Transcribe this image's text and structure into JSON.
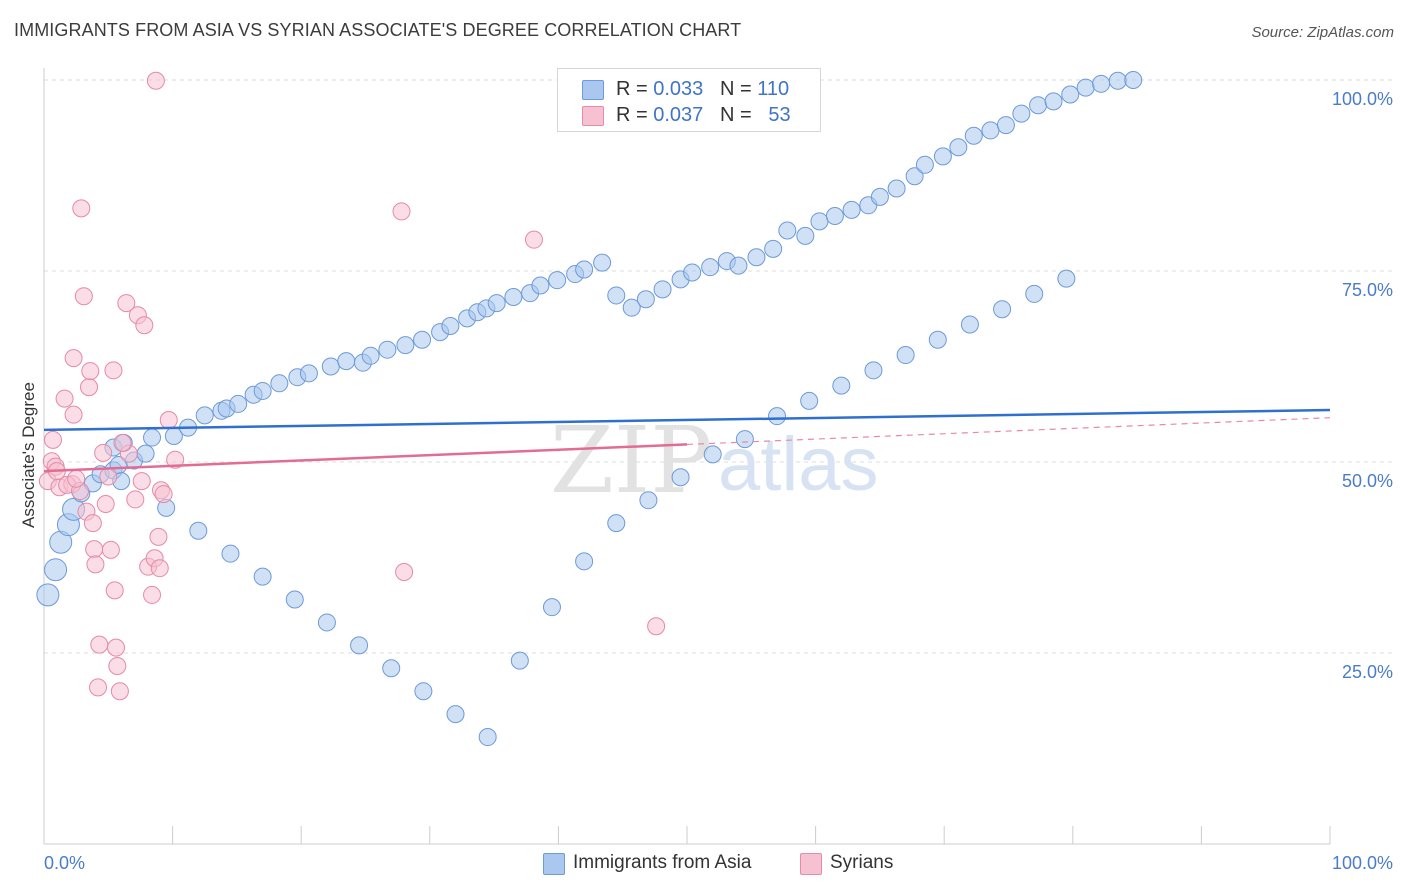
{
  "title": "IMMIGRANTS FROM ASIA VS SYRIAN ASSOCIATE'S DEGREE CORRELATION CHART",
  "source": "Source: ZipAtlas.com",
  "watermark": {
    "zip": "ZIP",
    "atlas": "atlas"
  },
  "legend": {
    "rows": [
      {
        "r_label": "R = ",
        "r_value": "0.033",
        "n_label": "N = ",
        "n_value": "110",
        "color": "#aac8ef",
        "border": "#6d9ad8"
      },
      {
        "r_label": "R = ",
        "r_value": "0.037",
        "n_label": "N = ",
        "n_value": "53",
        "color": "#f6c1d1",
        "border": "#e58aa8"
      }
    ]
  },
  "bottom_legend": [
    {
      "label": "Immigrants from Asia",
      "color": "#aac8ef",
      "border": "#6d9ad8"
    },
    {
      "label": "Syrians",
      "color": "#f6c1d1",
      "border": "#e58aa8"
    }
  ],
  "chart_data": {
    "type": "scatter",
    "title": "IMMIGRANTS FROM ASIA VS SYRIAN ASSOCIATE'S DEGREE CORRELATION CHART",
    "xlabel": "",
    "ylabel": "Associate's Degree",
    "xlim": [
      0,
      100
    ],
    "ylim": [
      0,
      100
    ],
    "x_tick_labels": [
      "0.0%",
      "100.0%"
    ],
    "y_ticks": [
      25,
      50,
      75,
      100
    ],
    "y_tick_labels": [
      "25.0%",
      "50.0%",
      "75.0%",
      "100.0%"
    ],
    "grid": "horizontal dashed",
    "legend_position": "top-center",
    "series": [
      {
        "name": "Immigrants from Asia",
        "color": "#6d9ad8",
        "fill": "#aac8ef",
        "trend": {
          "x": [
            0,
            100
          ],
          "y": [
            54.2,
            56.8
          ],
          "style": "solid"
        },
        "points": [
          [
            0.3,
            32.6
          ],
          [
            0.9,
            35.9
          ],
          [
            1.3,
            39.5
          ],
          [
            1.9,
            41.8
          ],
          [
            2.3,
            43.8
          ],
          [
            2.9,
            45.9
          ],
          [
            3.8,
            47.2
          ],
          [
            4.4,
            48.4
          ],
          [
            5.4,
            48.9
          ],
          [
            5.8,
            49.6
          ],
          [
            7.0,
            50.2
          ],
          [
            7.9,
            51.1
          ],
          [
            5.4,
            51.9
          ],
          [
            6.2,
            52.5
          ],
          [
            8.4,
            53.2
          ],
          [
            10.1,
            53.4
          ],
          [
            11.2,
            54.5
          ],
          [
            12.5,
            56.1
          ],
          [
            13.8,
            56.7
          ],
          [
            14.2,
            57.0
          ],
          [
            15.1,
            57.6
          ],
          [
            16.3,
            58.8
          ],
          [
            17.0,
            59.3
          ],
          [
            18.3,
            60.3
          ],
          [
            19.7,
            61.1
          ],
          [
            20.6,
            61.6
          ],
          [
            22.3,
            62.5
          ],
          [
            23.5,
            63.2
          ],
          [
            24.8,
            63.0
          ],
          [
            25.4,
            63.9
          ],
          [
            26.7,
            64.7
          ],
          [
            28.1,
            65.3
          ],
          [
            29.4,
            66.0
          ],
          [
            30.8,
            67.0
          ],
          [
            31.6,
            67.8
          ],
          [
            32.9,
            68.8
          ],
          [
            33.7,
            69.6
          ],
          [
            34.4,
            70.1
          ],
          [
            35.2,
            70.8
          ],
          [
            36.5,
            71.6
          ],
          [
            37.8,
            72.1
          ],
          [
            38.6,
            73.1
          ],
          [
            39.9,
            73.8
          ],
          [
            41.3,
            74.6
          ],
          [
            42.0,
            75.2
          ],
          [
            43.4,
            76.1
          ],
          [
            44.5,
            71.8
          ],
          [
            45.7,
            70.2
          ],
          [
            46.8,
            71.3
          ],
          [
            48.1,
            72.6
          ],
          [
            49.5,
            73.9
          ],
          [
            50.4,
            74.8
          ],
          [
            51.8,
            75.5
          ],
          [
            53.1,
            76.3
          ],
          [
            54.0,
            75.7
          ],
          [
            55.4,
            76.8
          ],
          [
            56.7,
            77.9
          ],
          [
            57.8,
            80.3
          ],
          [
            59.2,
            79.6
          ],
          [
            60.3,
            81.5
          ],
          [
            61.5,
            82.2
          ],
          [
            62.8,
            83.0
          ],
          [
            64.1,
            83.6
          ],
          [
            65.0,
            84.7
          ],
          [
            66.3,
            85.8
          ],
          [
            67.7,
            87.4
          ],
          [
            68.5,
            88.9
          ],
          [
            69.9,
            90.0
          ],
          [
            71.1,
            91.2
          ],
          [
            72.3,
            92.7
          ],
          [
            73.6,
            93.4
          ],
          [
            74.8,
            94.1
          ],
          [
            76.0,
            95.6
          ],
          [
            77.3,
            96.7
          ],
          [
            78.5,
            97.2
          ],
          [
            79.8,
            98.1
          ],
          [
            81.0,
            99.0
          ],
          [
            82.2,
            99.5
          ],
          [
            83.5,
            99.9
          ],
          [
            84.7,
            100
          ],
          [
            6.0,
            47.5
          ],
          [
            9.5,
            44.0
          ],
          [
            12.0,
            41.0
          ],
          [
            14.5,
            38.0
          ],
          [
            17.0,
            35.0
          ],
          [
            19.5,
            32.0
          ],
          [
            22.0,
            29.0
          ],
          [
            24.5,
            26.0
          ],
          [
            27.0,
            23.0
          ],
          [
            29.5,
            20.0
          ],
          [
            32.0,
            17.0
          ],
          [
            34.5,
            14.0
          ],
          [
            37.0,
            24.0
          ],
          [
            39.5,
            31.0
          ],
          [
            42.0,
            37.0
          ],
          [
            44.5,
            42.0
          ],
          [
            47.0,
            45.0
          ],
          [
            49.5,
            48.0
          ],
          [
            52.0,
            51.0
          ],
          [
            54.5,
            53.0
          ],
          [
            57.0,
            56.0
          ],
          [
            59.5,
            58.0
          ],
          [
            62.0,
            60.0
          ],
          [
            64.5,
            62.0
          ],
          [
            67.0,
            64.0
          ],
          [
            69.5,
            66.0
          ],
          [
            72.0,
            68.0
          ],
          [
            74.5,
            70.0
          ],
          [
            77.0,
            72.0
          ],
          [
            79.5,
            74.0
          ]
        ]
      },
      {
        "name": "Syrians",
        "color": "#e58aa8",
        "fill": "#f6c1d1",
        "trend": {
          "x": [
            0,
            50
          ],
          "y": [
            48.8,
            52.3
          ],
          "style": "solid",
          "extended": {
            "x": [
              50,
              100
            ],
            "y": [
              52.3,
              55.8
            ],
            "style": "dashed"
          }
        },
        "points": [
          [
            0.3,
            47.5
          ],
          [
            0.6,
            50.1
          ],
          [
            0.7,
            52.9
          ],
          [
            0.9,
            49.4
          ],
          [
            1.2,
            46.7
          ],
          [
            1.6,
            58.3
          ],
          [
            2.2,
            47.1
          ],
          [
            2.3,
            56.2
          ],
          [
            2.3,
            63.6
          ],
          [
            2.9,
            83.2
          ],
          [
            3.1,
            71.7
          ],
          [
            3.3,
            43.5
          ],
          [
            3.5,
            59.8
          ],
          [
            3.6,
            61.9
          ],
          [
            3.9,
            38.6
          ],
          [
            4.0,
            36.6
          ],
          [
            4.2,
            20.5
          ],
          [
            4.3,
            26.1
          ],
          [
            4.6,
            51.2
          ],
          [
            5.4,
            62.0
          ],
          [
            5.5,
            33.2
          ],
          [
            5.6,
            25.7
          ],
          [
            5.7,
            23.3
          ],
          [
            5.9,
            20.0
          ],
          [
            6.4,
            70.8
          ],
          [
            7.3,
            69.2
          ],
          [
            7.6,
            47.5
          ],
          [
            7.8,
            67.9
          ],
          [
            8.1,
            36.3
          ],
          [
            8.4,
            32.6
          ],
          [
            8.6,
            37.4
          ],
          [
            8.9,
            40.2
          ],
          [
            9.0,
            36.1
          ],
          [
            9.1,
            46.3
          ],
          [
            9.3,
            45.8
          ],
          [
            9.7,
            55.5
          ],
          [
            10.2,
            50.3
          ],
          [
            8.7,
            99.9
          ],
          [
            27.8,
            82.8
          ],
          [
            28.0,
            35.6
          ],
          [
            38.1,
            79.1
          ],
          [
            47.6,
            28.5
          ],
          [
            5.0,
            48.1
          ],
          [
            6.6,
            51.1
          ],
          [
            1.8,
            47.0
          ],
          [
            4.8,
            44.5
          ],
          [
            6.1,
            52.5
          ],
          [
            2.8,
            46.2
          ],
          [
            7.1,
            45.1
          ],
          [
            1.0,
            48.8
          ],
          [
            3.8,
            42.0
          ],
          [
            5.2,
            38.5
          ],
          [
            2.5,
            47.8
          ]
        ]
      }
    ]
  }
}
